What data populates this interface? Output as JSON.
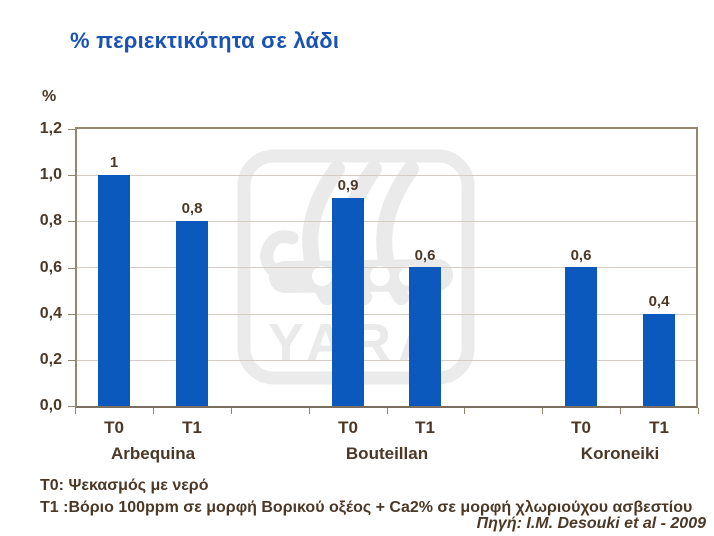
{
  "chart_data": {
    "type": "bar",
    "title": "% περιεκτικότητα σε λάδι",
    "ylabel": "%",
    "xlabel": "",
    "ylim": [
      0,
      1.2
    ],
    "ytick_step": 0.2,
    "y_ticks": [
      "0,0",
      "0,2",
      "0,4",
      "0,6",
      "0,8",
      "1,0",
      "1,2"
    ],
    "grid": "horizontal",
    "legend": "none",
    "categories": [
      "Arbequina",
      "Bouteillan",
      "Koroneiki"
    ],
    "treatments": [
      "T0",
      "T1"
    ],
    "groups": [
      {
        "category": "Arbequina",
        "bars": [
          {
            "treatment": "T0",
            "value": 1.0,
            "label": "1"
          },
          {
            "treatment": "T1",
            "value": 0.8,
            "label": "0,8"
          }
        ]
      },
      {
        "category": "Bouteillan",
        "bars": [
          {
            "treatment": "T0",
            "value": 0.9,
            "label": "0,9"
          },
          {
            "treatment": "T1",
            "value": 0.6,
            "label": "0,6"
          }
        ]
      },
      {
        "category": "Koroneiki",
        "bars": [
          {
            "treatment": "T0",
            "value": 0.6,
            "label": "0,6"
          },
          {
            "treatment": "T1",
            "value": 0.4,
            "label": "0,4"
          }
        ]
      }
    ]
  },
  "watermark": {
    "text": "YARA"
  },
  "footnotes": [
    "T0: Ψεκασμός με νερό",
    "T1 :Βόριο 100ppm σε μορφή Βορικού οξέος + Ca2% σε μορφή χλωριούχου ασβεστίου"
  ],
  "source": "Πηγή: I.M. Desouki et al - 2009",
  "colors": {
    "bar": "#0C59BE",
    "title": "#1A53B4",
    "text": "#4C3826",
    "grid": "#D5CDC3",
    "frame": "#94866F",
    "watermark": "#EAEAEA"
  }
}
